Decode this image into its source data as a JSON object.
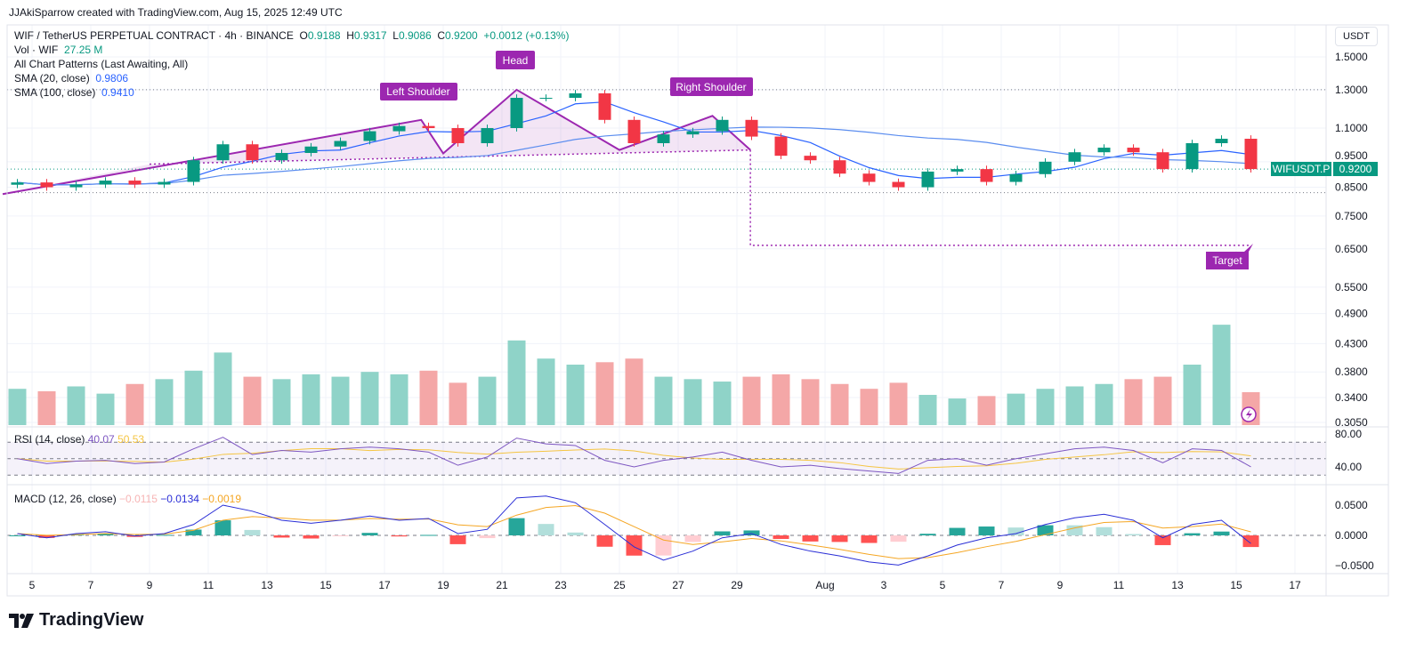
{
  "header": {
    "credit": "JJAkiSparrow created with TradingView.com, Aug 15, 2025 12:49 UTC"
  },
  "legend": {
    "symbol": "WIF / TetherUS PERPETUAL CONTRACT · 4h · BINANCE",
    "o_label": "O",
    "o": "0.9188",
    "h_label": "H",
    "h": "0.9317",
    "l_label": "L",
    "l": "0.9086",
    "c_label": "C",
    "c": "0.9200",
    "change": "+0.0012 (+0.13%)",
    "vol_label": "Vol · WIF",
    "vol": "27.25 M",
    "patterns": "All Chart Patterns (Last Awaiting, All)",
    "sma20_label": "SMA (20, close)",
    "sma20": "0.9806",
    "sma100_label": "SMA (100, close)",
    "sma100": "0.9410",
    "rsi_label": "RSI (14, close)",
    "rsi": "40.07",
    "rsi_ma": "50.53",
    "macd_label": "MACD (12, 26, close)",
    "macd_hist": "−0.0115",
    "macd": "−0.0134",
    "macd_signal": "−0.0019"
  },
  "price_axis": {
    "currency": "USDT",
    "ticks": [
      "1.5000",
      "1.3000",
      "1.1000",
      "0.9500",
      "0.8500",
      "0.7500",
      "0.6500",
      "0.5500",
      "0.4900",
      "0.4300",
      "0.3800",
      "0.3400",
      "0.3050"
    ],
    "scale": "log"
  },
  "last_price": {
    "symbol": "WIFUSDT.P",
    "value": "0.9200"
  },
  "rsi_axis": {
    "ticks": [
      "80.00",
      "40.00"
    ]
  },
  "macd_axis": {
    "ticks": [
      "0.0500",
      "0.0000",
      "−0.0500"
    ]
  },
  "colors": {
    "up": "#089981",
    "down": "#f23645",
    "vol_up": "#8fd3c8",
    "vol_down": "#f4a7a7",
    "sma20": "#2962ff",
    "sma100": "#5b8def",
    "pattern": "#9c27b0",
    "rsi": "#7e57c2",
    "rsi_ma": "#f5c542",
    "macd": "#2a2ed6",
    "signal": "#f5a623"
  },
  "chart_data": {
    "type": "candlestick",
    "interval": "4h (shown aggregated per day)",
    "x_ticks": [
      {
        "label": "5",
        "date": "2025-07-05"
      },
      {
        "label": "7",
        "date": "2025-07-07"
      },
      {
        "label": "9",
        "date": "2025-07-09"
      },
      {
        "label": "11",
        "date": "2025-07-11"
      },
      {
        "label": "13",
        "date": "2025-07-13"
      },
      {
        "label": "15",
        "date": "2025-07-15"
      },
      {
        "label": "17",
        "date": "2025-07-17"
      },
      {
        "label": "19",
        "date": "2025-07-19"
      },
      {
        "label": "21",
        "date": "2025-07-21"
      },
      {
        "label": "23",
        "date": "2025-07-23"
      },
      {
        "label": "25",
        "date": "2025-07-25"
      },
      {
        "label": "27",
        "date": "2025-07-27"
      },
      {
        "label": "29",
        "date": "2025-07-29"
      },
      {
        "label": "Aug",
        "date": "2025-08-01"
      },
      {
        "label": "3",
        "date": "2025-08-03"
      },
      {
        "label": "5",
        "date": "2025-08-05"
      },
      {
        "label": "7",
        "date": "2025-08-07"
      },
      {
        "label": "9",
        "date": "2025-08-09"
      },
      {
        "label": "11",
        "date": "2025-08-11"
      },
      {
        "label": "13",
        "date": "2025-08-13"
      },
      {
        "label": "15",
        "date": "2025-08-15"
      },
      {
        "label": "17",
        "date": "2025-08-17"
      }
    ],
    "start_date": "2025-07-04",
    "close": [
      0.868,
      0.85,
      0.86,
      0.875,
      0.86,
      0.87,
      0.956,
      1.025,
      0.956,
      0.987,
      1.015,
      1.04,
      1.085,
      1.11,
      1.1,
      1.03,
      1.1,
      1.255,
      1.255,
      1.28,
      1.14,
      1.03,
      1.07,
      1.085,
      1.14,
      1.06,
      0.975,
      0.956,
      0.902,
      0.87,
      0.85,
      0.91,
      0.92,
      0.87,
      0.9,
      0.95,
      0.99,
      1.01,
      0.99,
      0.92,
      1.03,
      1.05,
      0.92
    ],
    "volume_m": [
      30,
      28,
      32,
      26,
      34,
      38,
      45,
      60,
      40,
      38,
      42,
      40,
      44,
      42,
      45,
      35,
      40,
      70,
      55,
      50,
      52,
      55,
      40,
      38,
      36,
      40,
      42,
      38,
      34,
      30,
      35,
      25,
      22,
      24,
      26,
      30,
      32,
      34,
      38,
      40,
      50,
      83,
      27.25
    ],
    "rsi": [
      50,
      44,
      47,
      48,
      44,
      46,
      62,
      76,
      55,
      60,
      58,
      62,
      64,
      62,
      58,
      42,
      52,
      75,
      68,
      66,
      48,
      40,
      48,
      52,
      58,
      48,
      40,
      42,
      38,
      35,
      32,
      48,
      50,
      42,
      50,
      56,
      62,
      64,
      60,
      45,
      62,
      60,
      40.07
    ],
    "rsi_levels": [
      70,
      50,
      30
    ],
    "macd": [
      0.003,
      -0.004,
      0.003,
      0.006,
      -0.001,
      0.003,
      0.018,
      0.05,
      0.04,
      0.025,
      0.02,
      0.025,
      0.032,
      0.025,
      0.028,
      0.003,
      0.01,
      0.062,
      0.065,
      0.054,
      0.018,
      -0.019,
      -0.041,
      -0.026,
      -0.004,
      0.003,
      -0.015,
      -0.026,
      -0.034,
      -0.044,
      -0.049,
      -0.034,
      -0.016,
      -0.004,
      0.003,
      0.018,
      0.029,
      0.035,
      0.025,
      -0.004,
      0.018,
      0.025,
      -0.0134
    ],
    "pattern": {
      "name": "Head and Shoulders",
      "labels": {
        "left_shoulder": "Left Shoulder",
        "head": "Head",
        "right_shoulder": "Right Shoulder",
        "target": "Target"
      },
      "points": [
        {
          "t": "2025-07-04T00:00",
          "p": 0.825
        },
        {
          "t": "2025-07-18T06:00",
          "p": 1.14
        },
        {
          "t": "2025-07-19T00:00",
          "p": 0.985
        },
        {
          "t": "2025-07-21T12:00",
          "p": 1.3
        },
        {
          "t": "2025-07-25T00:00",
          "p": 1.0
        },
        {
          "t": "2025-07-28T04:00",
          "p": 1.16
        },
        {
          "t": "2025-07-29T11:00",
          "p": 1.0
        }
      ],
      "neckline": [
        {
          "t": "2025-07-09T00:00",
          "p": 0.94
        },
        {
          "t": "2025-07-29T11:00",
          "p": 1.0
        }
      ],
      "target": {
        "p": 0.66,
        "t_end": "2025-08-15T12:00"
      },
      "levels": [
        1.3,
        0.83
      ]
    }
  }
}
